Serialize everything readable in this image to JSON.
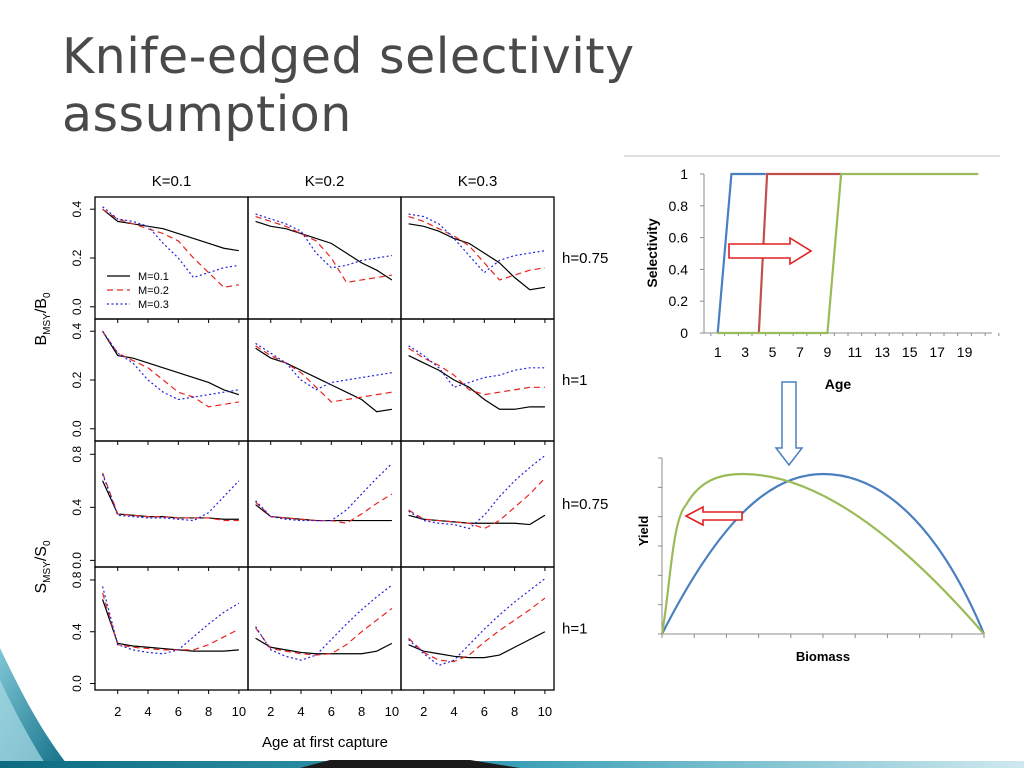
{
  "slide": {
    "title": "Knife-edged selectivity assumption"
  },
  "chart_data": [
    {
      "type": "line",
      "title": "",
      "column_labels": [
        "K=0.1",
        "K=0.2",
        "K=0.3"
      ],
      "row_labels": [
        "h=0.75",
        "h=1",
        "h=0.75",
        "h=1"
      ],
      "xlabel": "Age at first capture",
      "x_ticks": [
        2,
        4,
        6,
        8,
        10
      ],
      "ylabel_top_main": "B",
      "ylabel_top_sub": "MSY",
      "ylabel_top_den": "/B",
      "ylabel_top_den_sub": "0",
      "ylabel_bottom_main": "S",
      "ylabel_bottom_sub": "MSY",
      "ylabel_bottom_den": "/S",
      "ylabel_bottom_den_sub": "0",
      "y_ticks_top": [
        "0.0",
        "0.2",
        "0.4"
      ],
      "ylim_top": [
        -0.05,
        0.45
      ],
      "y_ticks_bottom": [
        "0.0",
        "0.4",
        "0.8"
      ],
      "ylim_bottom": [
        -0.05,
        0.9
      ],
      "xlim": [
        0.5,
        10.6
      ],
      "legend": [
        "M=0.1",
        "M=0.2",
        "M=0.3"
      ],
      "x": [
        1,
        2,
        3,
        4,
        5,
        6,
        7,
        8,
        9,
        10
      ],
      "panels": [
        [
          {
            "M01": [
              0.4,
              0.35,
              0.34,
              0.33,
              0.32,
              0.3,
              0.28,
              0.26,
              0.24,
              0.23
            ],
            "M02": [
              0.4,
              0.36,
              0.34,
              0.32,
              0.3,
              0.27,
              0.2,
              0.14,
              0.08,
              0.09
            ],
            "M03": [
              0.41,
              0.36,
              0.35,
              0.33,
              0.26,
              0.2,
              0.12,
              0.14,
              0.16,
              0.17
            ]
          },
          {
            "M01": [
              0.35,
              0.33,
              0.32,
              0.3,
              0.28,
              0.26,
              0.22,
              0.18,
              0.15,
              0.11
            ],
            "M02": [
              0.37,
              0.35,
              0.33,
              0.3,
              0.27,
              0.2,
              0.1,
              0.11,
              0.12,
              0.13
            ],
            "M03": [
              0.38,
              0.36,
              0.34,
              0.31,
              0.22,
              0.16,
              0.17,
              0.19,
              0.2,
              0.21
            ]
          },
          {
            "M01": [
              0.34,
              0.33,
              0.31,
              0.28,
              0.26,
              0.22,
              0.18,
              0.12,
              0.07,
              0.08
            ],
            "M02": [
              0.37,
              0.35,
              0.32,
              0.29,
              0.25,
              0.18,
              0.11,
              0.13,
              0.15,
              0.16
            ],
            "M03": [
              0.38,
              0.37,
              0.34,
              0.28,
              0.21,
              0.14,
              0.19,
              0.21,
              0.22,
              0.23
            ]
          }
        ],
        [
          {
            "M01": [
              0.4,
              0.3,
              0.29,
              0.27,
              0.25,
              0.23,
              0.21,
              0.19,
              0.16,
              0.14
            ],
            "M02": [
              0.4,
              0.31,
              0.28,
              0.25,
              0.2,
              0.15,
              0.13,
              0.09,
              0.1,
              0.11
            ],
            "M03": [
              0.4,
              0.31,
              0.27,
              0.2,
              0.15,
              0.12,
              0.13,
              0.14,
              0.15,
              0.16
            ]
          },
          {
            "M01": [
              0.33,
              0.29,
              0.27,
              0.24,
              0.21,
              0.18,
              0.15,
              0.12,
              0.07,
              0.08
            ],
            "M02": [
              0.34,
              0.3,
              0.27,
              0.23,
              0.17,
              0.11,
              0.12,
              0.13,
              0.14,
              0.15
            ],
            "M03": [
              0.35,
              0.31,
              0.27,
              0.2,
              0.16,
              0.19,
              0.2,
              0.21,
              0.22,
              0.23
            ]
          },
          {
            "M01": [
              0.3,
              0.27,
              0.24,
              0.2,
              0.17,
              0.12,
              0.08,
              0.08,
              0.09,
              0.09
            ],
            "M02": [
              0.33,
              0.29,
              0.26,
              0.22,
              0.16,
              0.14,
              0.15,
              0.16,
              0.17,
              0.17
            ],
            "M03": [
              0.34,
              0.3,
              0.25,
              0.17,
              0.19,
              0.21,
              0.22,
              0.24,
              0.25,
              0.25
            ]
          }
        ],
        [
          {
            "M01": [
              0.6,
              0.35,
              0.34,
              0.33,
              0.33,
              0.32,
              0.32,
              0.32,
              0.31,
              0.31
            ],
            "M02": [
              0.66,
              0.35,
              0.34,
              0.33,
              0.33,
              0.32,
              0.32,
              0.32,
              0.3,
              0.3
            ],
            "M03": [
              0.65,
              0.34,
              0.33,
              0.32,
              0.32,
              0.31,
              0.3,
              0.36,
              0.48,
              0.6
            ]
          },
          {
            "M01": [
              0.42,
              0.33,
              0.32,
              0.31,
              0.3,
              0.3,
              0.3,
              0.3,
              0.3,
              0.3
            ],
            "M02": [
              0.44,
              0.33,
              0.32,
              0.31,
              0.3,
              0.3,
              0.28,
              0.35,
              0.43,
              0.5
            ],
            "M03": [
              0.45,
              0.33,
              0.31,
              0.3,
              0.3,
              0.3,
              0.38,
              0.5,
              0.62,
              0.73
            ]
          },
          {
            "M01": [
              0.34,
              0.31,
              0.3,
              0.29,
              0.28,
              0.28,
              0.28,
              0.28,
              0.27,
              0.34
            ],
            "M02": [
              0.38,
              0.31,
              0.3,
              0.29,
              0.28,
              0.24,
              0.3,
              0.4,
              0.5,
              0.62
            ],
            "M03": [
              0.37,
              0.3,
              0.28,
              0.27,
              0.24,
              0.34,
              0.48,
              0.6,
              0.7,
              0.79
            ]
          }
        ],
        [
          {
            "M01": [
              0.65,
              0.31,
              0.29,
              0.28,
              0.27,
              0.26,
              0.25,
              0.25,
              0.25,
              0.26
            ],
            "M02": [
              0.7,
              0.3,
              0.28,
              0.27,
              0.26,
              0.26,
              0.26,
              0.3,
              0.36,
              0.42
            ],
            "M03": [
              0.75,
              0.3,
              0.26,
              0.24,
              0.23,
              0.26,
              0.36,
              0.46,
              0.55,
              0.62
            ]
          },
          {
            "M01": [
              0.35,
              0.28,
              0.26,
              0.24,
              0.23,
              0.23,
              0.23,
              0.23,
              0.25,
              0.31
            ],
            "M02": [
              0.43,
              0.27,
              0.25,
              0.23,
              0.22,
              0.23,
              0.3,
              0.4,
              0.49,
              0.58
            ],
            "M03": [
              0.44,
              0.26,
              0.21,
              0.18,
              0.22,
              0.34,
              0.46,
              0.57,
              0.67,
              0.76
            ]
          },
          {
            "M01": [
              0.3,
              0.25,
              0.23,
              0.21,
              0.2,
              0.2,
              0.22,
              0.28,
              0.34,
              0.4
            ],
            "M02": [
              0.35,
              0.24,
              0.18,
              0.17,
              0.22,
              0.32,
              0.41,
              0.49,
              0.57,
              0.66
            ],
            "M03": [
              0.34,
              0.23,
              0.14,
              0.18,
              0.3,
              0.42,
              0.53,
              0.63,
              0.72,
              0.81
            ]
          }
        ]
      ]
    },
    {
      "type": "line",
      "title": "",
      "xlabel": "Age",
      "ylabel": "Selectivity",
      "x_ticks": [
        1,
        3,
        5,
        7,
        9,
        11,
        13,
        15,
        17,
        19
      ],
      "y_ticks": [
        "0",
        "0.2",
        "0.4",
        "0.6",
        "0.8",
        "1"
      ],
      "xlim": [
        0,
        21
      ],
      "ylim": [
        0,
        1
      ],
      "series": [
        {
          "color": "#4a7fc0",
          "x": [
            1,
            2,
            4.5
          ],
          "y": [
            0,
            1,
            1
          ]
        },
        {
          "color": "#c0504d",
          "x": [
            4,
            4.6,
            10
          ],
          "y": [
            0,
            1,
            1
          ]
        },
        {
          "color": "#9bbb59",
          "x": [
            1,
            9,
            10,
            20
          ],
          "y": [
            0,
            0,
            1,
            1
          ]
        }
      ]
    },
    {
      "type": "line",
      "title": "",
      "xlabel": "Biomass",
      "ylabel": "Yield",
      "series": [
        {
          "color": "#4a7fc0",
          "shape": "symmetric-dome"
        },
        {
          "color": "#9bbb59",
          "shape": "left-skewed-dome"
        }
      ]
    }
  ]
}
